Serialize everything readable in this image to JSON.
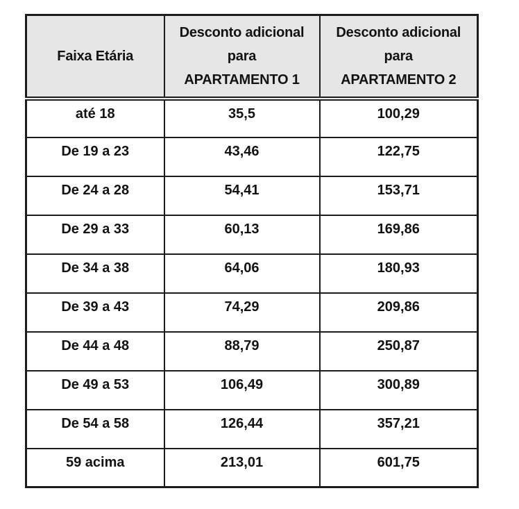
{
  "chart_data": {
    "type": "table",
    "columns": [
      "Faixa Etária",
      "Desconto adicional para APARTAMENTO 1",
      "Desconto adicional para APARTAMENTO 2"
    ],
    "rows": [
      [
        "até 18",
        "35,5",
        "100,29"
      ],
      [
        "De 19 a 23",
        "43,46",
        "122,75"
      ],
      [
        "De 24 a 28",
        "54,41",
        "153,71"
      ],
      [
        "De 29 a 33",
        "60,13",
        "169,86"
      ],
      [
        "De 34 a 38",
        "64,06",
        "180,93"
      ],
      [
        "De 39 a 43",
        "74,29",
        "209,86"
      ],
      [
        "De 44 a 48",
        "88,79",
        "250,87"
      ],
      [
        "De 49 a 53",
        "106,49",
        "300,89"
      ],
      [
        "De 54 a 58",
        "126,44",
        "357,21"
      ],
      [
        "59 acima",
        "213,01",
        "601,75"
      ]
    ]
  },
  "table": {
    "columns": [
      {
        "label": "Faixa Etária"
      },
      {
        "label": "Desconto adicional\npara\nAPARTAMENTO 1"
      },
      {
        "label": "Desconto adicional\npara\nAPARTAMENTO 2"
      }
    ],
    "rows": [
      {
        "faixa": "até 18",
        "ap1": "35,5",
        "ap2": "100,29"
      },
      {
        "faixa": "De 19 a 23",
        "ap1": "43,46",
        "ap2": "122,75"
      },
      {
        "faixa": "De 24 a 28",
        "ap1": "54,41",
        "ap2": "153,71"
      },
      {
        "faixa": "De 29 a 33",
        "ap1": "60,13",
        "ap2": "169,86"
      },
      {
        "faixa": "De 34 a 38",
        "ap1": "64,06",
        "ap2": "180,93"
      },
      {
        "faixa": "De 39 a 43",
        "ap1": "74,29",
        "ap2": "209,86"
      },
      {
        "faixa": "De 44 a 48",
        "ap1": "88,79",
        "ap2": "250,87"
      },
      {
        "faixa": "De 49 a 53",
        "ap1": "106,49",
        "ap2": "300,89"
      },
      {
        "faixa": "De 54 a 58",
        "ap1": "126,44",
        "ap2": "357,21"
      },
      {
        "faixa": "59 acima",
        "ap1": "213,01",
        "ap2": "601,75"
      }
    ]
  },
  "colors": {
    "header_background": "#e6e6e6",
    "border": "#1c1c1c",
    "text": "#121212",
    "page_background": "#ffffff"
  }
}
